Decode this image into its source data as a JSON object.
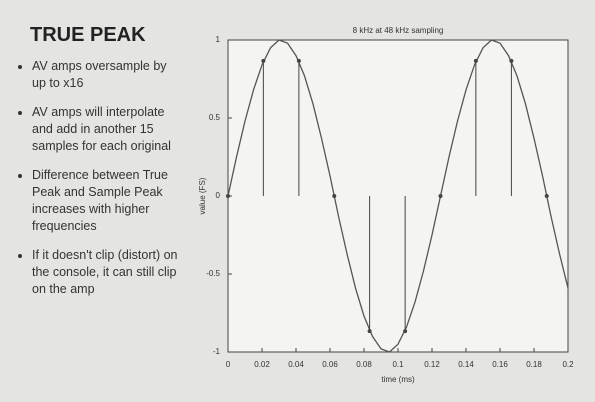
{
  "slide": {
    "title": "TRUE PEAK",
    "bullets": [
      "AV amps oversample by up to x16",
      "AV amps will interpolate and add in another 15 samples for each original",
      "Difference between True Peak and Sample Peak increases with higher frequencies",
      "If it doesn't clip (distort) on the console, it can still clip on the amp"
    ]
  },
  "chart_data": {
    "type": "line",
    "title": "8 kHz at 48 kHz sampling",
    "x_label": "time (ms)",
    "y_label": "value (FS)",
    "xlim": [
      0,
      0.2
    ],
    "ylim": [
      -1,
      1
    ],
    "xticks": [
      0,
      0.02,
      0.04,
      0.06,
      0.08,
      0.1,
      0.12,
      0.14,
      0.16,
      0.18,
      0.2
    ],
    "yticks": [
      -1,
      -0.5,
      0,
      0.5,
      1
    ],
    "series": [
      {
        "type": "line",
        "color": "#555555",
        "x": [
          0,
          0.005,
          0.01,
          0.015,
          0.02,
          0.025,
          0.03,
          0.035,
          0.04,
          0.045,
          0.05,
          0.055,
          0.06,
          0.065,
          0.07,
          0.075,
          0.08,
          0.085,
          0.09,
          0.095,
          0.1,
          0.105,
          0.11,
          0.115,
          0.12,
          0.125,
          0.13,
          0.135,
          0.14,
          0.145,
          0.15,
          0.155,
          0.16,
          0.165,
          0.17,
          0.175,
          0.18,
          0.185,
          0.19,
          0.195,
          0.2
        ],
        "values": [
          0,
          0.25,
          0.48,
          0.68,
          0.84,
          0.95,
          1.0,
          0.98,
          0.9,
          0.77,
          0.59,
          0.37,
          0.13,
          -0.13,
          -0.37,
          -0.59,
          -0.77,
          -0.9,
          -0.98,
          -1.0,
          -0.95,
          -0.84,
          -0.68,
          -0.48,
          -0.25,
          0,
          0.25,
          0.48,
          0.68,
          0.84,
          0.95,
          1.0,
          0.98,
          0.9,
          0.77,
          0.59,
          0.37,
          0.13,
          -0.13,
          -0.37,
          -0.59
        ]
      },
      {
        "type": "stem",
        "color": "#444444",
        "x": [
          0,
          0.0208,
          0.0417,
          0.0625,
          0.0833,
          0.1042,
          0.125,
          0.1458,
          0.1667,
          0.1875
        ],
        "values": [
          0,
          0.866,
          0.866,
          0,
          -0.866,
          -0.866,
          0,
          0.866,
          0.866,
          0
        ]
      }
    ]
  }
}
